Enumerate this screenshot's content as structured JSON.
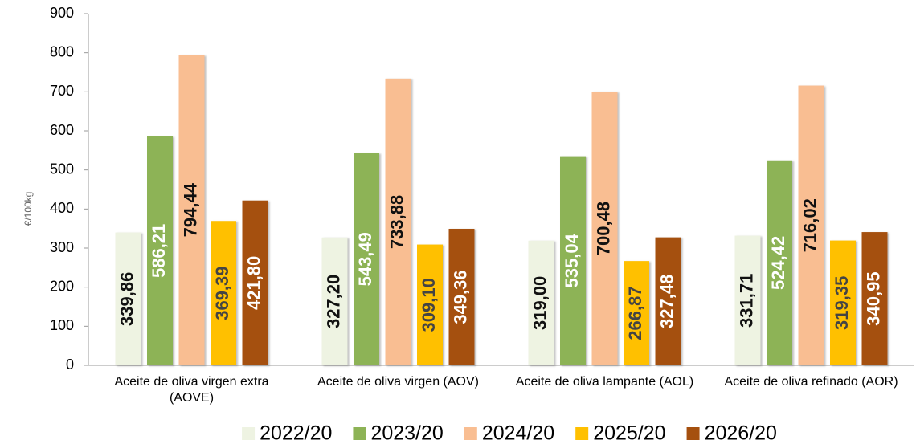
{
  "chart_data": {
    "type": "bar",
    "y_label": "€/100kg",
    "categories": [
      "Aceite de oliva virgen extra (AOVE)",
      "Aceite de oliva virgen (AOV)",
      "Aceite de oliva lampante (AOL)",
      "Aceite de oliva refinado (AOR)"
    ],
    "series": [
      {
        "name": "2022/20",
        "color": "#eef3e2",
        "values": [
          339.86,
          327.2,
          319.0,
          331.71
        ],
        "value_labels": [
          "339,86",
          "327,20",
          "319,00",
          "331,71"
        ]
      },
      {
        "name": "2023/20",
        "color": "#8db356",
        "values": [
          586.21,
          543.49,
          535.04,
          524.42
        ],
        "value_labels": [
          "586,21",
          "543,49",
          "535,04",
          "524,42"
        ]
      },
      {
        "name": "2024/20",
        "color": "#f9be92",
        "values": [
          794.44,
          733.88,
          700.48,
          716.02
        ],
        "value_labels": [
          "794,44",
          "733,88",
          "700,48",
          "716,02"
        ]
      },
      {
        "name": "2025/20",
        "color": "#ffc000",
        "values": [
          369.39,
          309.1,
          266.87,
          319.35
        ],
        "value_labels": [
          "369,39",
          "309,10",
          "266,87",
          "319,35"
        ]
      },
      {
        "name": "2026/20",
        "color": "#a5500f",
        "values": [
          421.8,
          349.36,
          327.48,
          340.95
        ],
        "value_labels": [
          "421,80",
          "349,36",
          "327,48",
          "340,95"
        ]
      }
    ],
    "ylim": [
      0,
      900
    ],
    "yticks": [
      0,
      100,
      200,
      300,
      400,
      500,
      600,
      700,
      800,
      900
    ],
    "legend": "bottom"
  }
}
